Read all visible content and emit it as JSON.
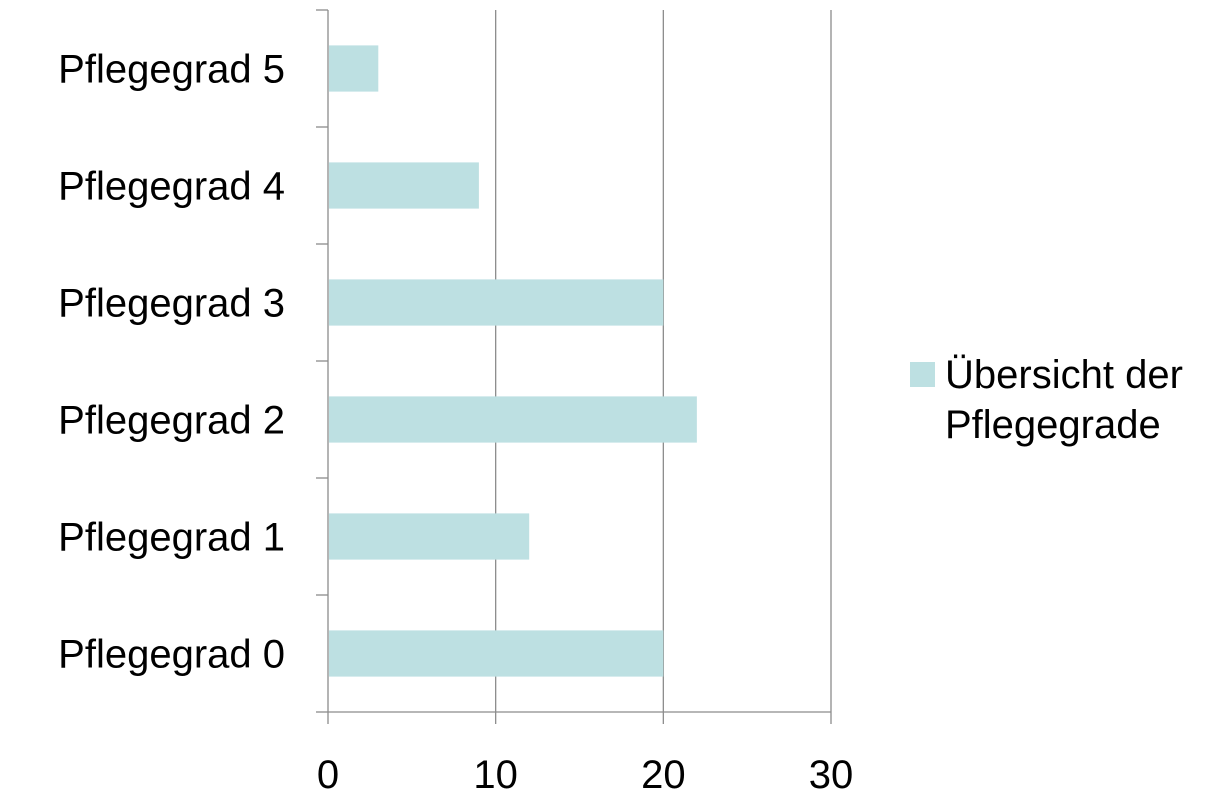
{
  "chart_data": {
    "type": "bar",
    "orientation": "horizontal",
    "categories": [
      "Pflegegrad 0",
      "Pflegegrad 1",
      "Pflegegrad 2",
      "Pflegegrad 3",
      "Pflegegrad 4",
      "Pflegegrad 5"
    ],
    "series": [
      {
        "name": "Übersicht der Pflegegrade",
        "values": [
          20,
          12,
          22,
          20,
          9,
          3
        ],
        "color": "#bde0e2"
      }
    ],
    "xlim": [
      0,
      30
    ],
    "x_ticks": [
      "0",
      "10",
      "20",
      "30"
    ],
    "grid": "vertical",
    "legend_position": "right",
    "legend": [
      "Übersicht",
      "der",
      "Pflegegrade"
    ],
    "axis_color": "#8c8c8c"
  }
}
